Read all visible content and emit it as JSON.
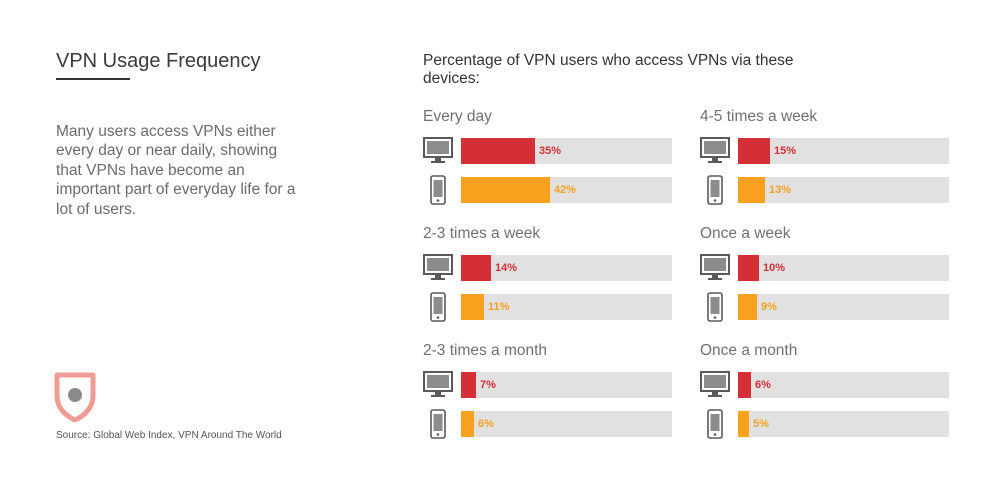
{
  "title": "VPN Usage Frequency",
  "description": "Many users access VPNs either every day or near daily, showing that VPNs have become an important part of everyday life for a lot of users.",
  "source": "Source: Global Web Index, VPN Around The World",
  "colors": {
    "desktop": "#d42f36",
    "mobile": "#f7a11f",
    "track": "#e1e1e1",
    "logo": "#ef9c96",
    "logo_dot": "#8a8a8a"
  },
  "icons": {
    "desktop": "desktop-monitor-icon",
    "mobile": "mobile-phone-icon",
    "logo": "shield-logo-icon"
  },
  "chart_data": {
    "type": "bar",
    "title": "Percentage of VPN users who access VPNs via these devices:",
    "categories": [
      "Every day",
      "4-5 times a week",
      "2-3 times a week",
      "Once a week",
      "2-3 times a month",
      "Once a month"
    ],
    "series": [
      {
        "device": "desktop",
        "values": [
          35,
          15,
          14,
          10,
          7,
          6
        ]
      },
      {
        "device": "mobile",
        "values": [
          42,
          13,
          11,
          9,
          6,
          5
        ]
      }
    ],
    "value_labels": {
      "desktop": [
        "35%",
        "15%",
        "14%",
        "10%",
        "7%",
        "6%"
      ],
      "mobile": [
        "42%",
        "13%",
        "11%",
        "9%",
        "6%",
        "5%"
      ]
    },
    "xlim": [
      0,
      100
    ],
    "grid": false,
    "legend": "none"
  }
}
